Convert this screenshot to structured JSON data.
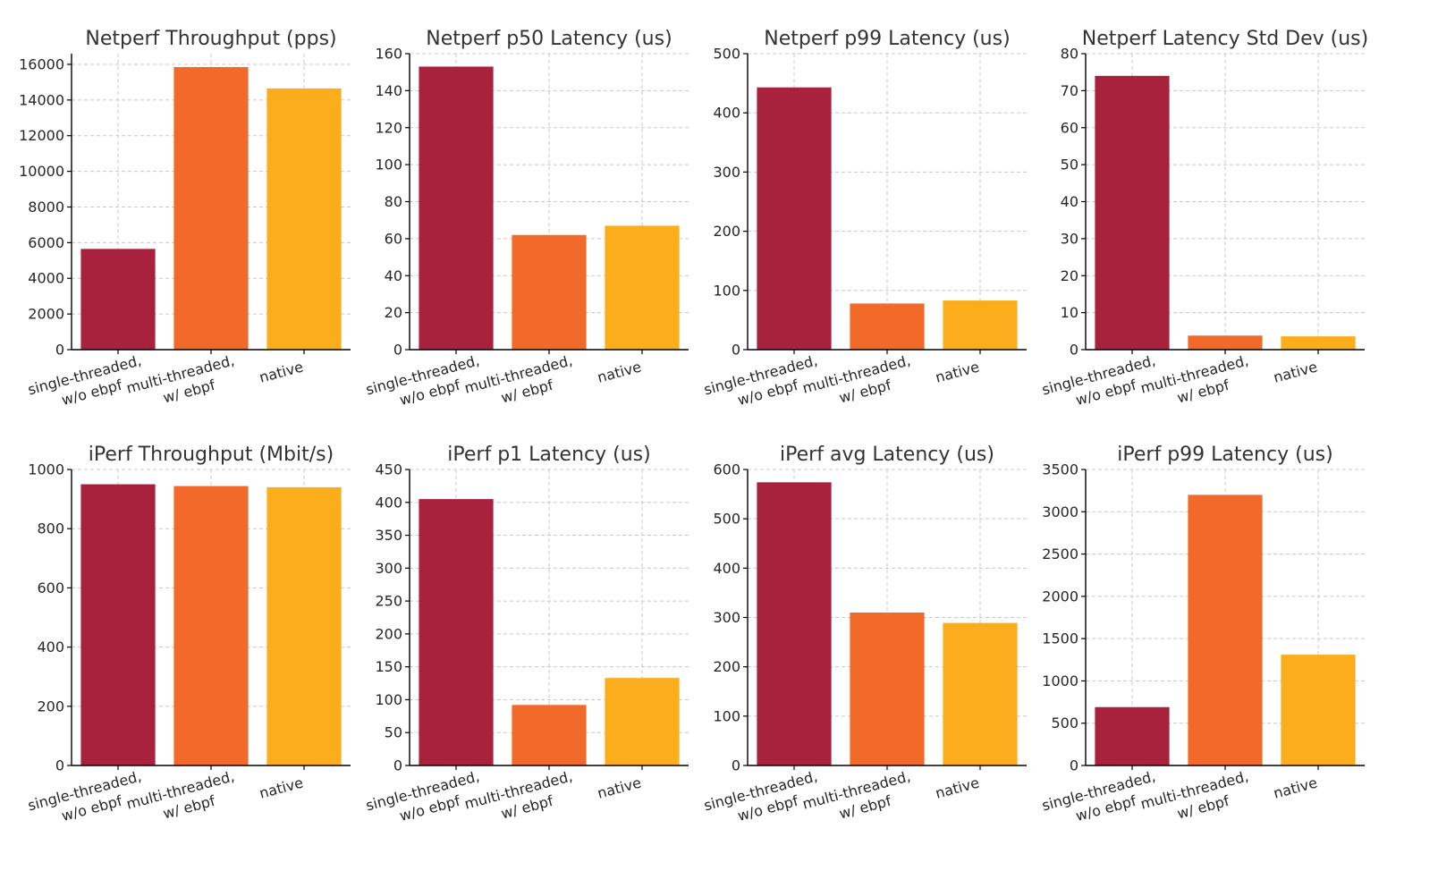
{
  "figure": {
    "background": "#ffffff"
  },
  "colors": [
    "#a8213d",
    "#f26a2a",
    "#fbad1c"
  ],
  "chart_data": [
    {
      "type": "bar",
      "title": "Netperf Throughput (pps)",
      "categories": [
        "single-threaded,\nw/o ebpf",
        "multi-threaded,\nw/ ebpf",
        "native"
      ],
      "values": [
        5650,
        15850,
        14650
      ],
      "ylim": [
        0,
        16600
      ],
      "yticks": [
        0,
        2000,
        4000,
        6000,
        8000,
        10000,
        12000,
        14000,
        16000
      ],
      "grid": true
    },
    {
      "type": "bar",
      "title": "Netperf p50 Latency (us)",
      "categories": [
        "single-threaded,\nw/o ebpf",
        "multi-threaded,\nw/ ebpf",
        "native"
      ],
      "values": [
        153,
        62,
        67
      ],
      "ylim": [
        0,
        160
      ],
      "yticks": [
        0,
        20,
        40,
        60,
        80,
        100,
        120,
        140,
        160
      ],
      "grid": true
    },
    {
      "type": "bar",
      "title": "Netperf p99 Latency (us)",
      "categories": [
        "single-threaded,\nw/o ebpf",
        "multi-threaded,\nw/ ebpf",
        "native"
      ],
      "values": [
        443,
        78,
        83
      ],
      "ylim": [
        0,
        500
      ],
      "yticks": [
        0,
        100,
        200,
        300,
        400,
        500
      ],
      "grid": true
    },
    {
      "type": "bar",
      "title": "Netperf Latency Std Dev (us)",
      "categories": [
        "single-threaded,\nw/o ebpf",
        "multi-threaded,\nw/ ebpf",
        "native"
      ],
      "values": [
        74,
        3.8,
        3.6
      ],
      "ylim": [
        0,
        80
      ],
      "yticks": [
        0,
        10,
        20,
        30,
        40,
        50,
        60,
        70,
        80
      ],
      "grid": true
    },
    {
      "type": "bar",
      "title": "iPerf Throughput (Mbit/s)",
      "categories": [
        "single-threaded,\nw/o ebpf",
        "multi-threaded,\nw/ ebpf",
        "native"
      ],
      "values": [
        950,
        944,
        940
      ],
      "ylim": [
        0,
        1000
      ],
      "yticks": [
        0,
        200,
        400,
        600,
        800,
        1000
      ],
      "grid": true
    },
    {
      "type": "bar",
      "title": "iPerf p1 Latency (us)",
      "categories": [
        "single-threaded,\nw/o ebpf",
        "multi-threaded,\nw/ ebpf",
        "native"
      ],
      "values": [
        405,
        92,
        133
      ],
      "ylim": [
        0,
        450
      ],
      "yticks": [
        0,
        50,
        100,
        150,
        200,
        250,
        300,
        350,
        400,
        450
      ],
      "grid": true
    },
    {
      "type": "bar",
      "title": "iPerf avg Latency (us)",
      "categories": [
        "single-threaded,\nw/o ebpf",
        "multi-threaded,\nw/ ebpf",
        "native"
      ],
      "values": [
        574,
        310,
        289
      ],
      "ylim": [
        0,
        600
      ],
      "yticks": [
        0,
        100,
        200,
        300,
        400,
        500,
        600
      ],
      "grid": true
    },
    {
      "type": "bar",
      "title": "iPerf p99 Latency (us)",
      "categories": [
        "single-threaded,\nw/o ebpf",
        "multi-threaded,\nw/ ebpf",
        "native"
      ],
      "values": [
        690,
        3200,
        1310
      ],
      "ylim": [
        0,
        3500
      ],
      "yticks": [
        0,
        500,
        1000,
        1500,
        2000,
        2500,
        3000,
        3500
      ],
      "grid": true
    }
  ]
}
